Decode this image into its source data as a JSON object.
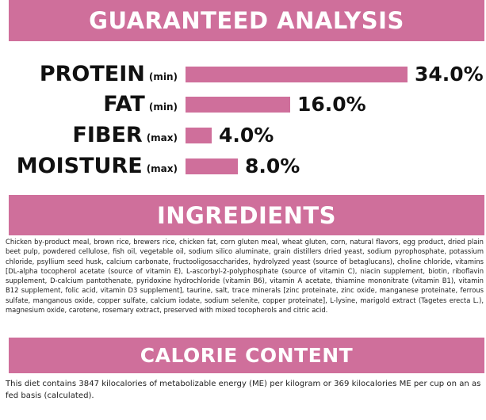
{
  "colors": {
    "accent": "#cf6f9b",
    "text": "#111111",
    "banner_text": "#ffffff"
  },
  "guaranteed_analysis": {
    "title": "GUARANTEED ANALYSIS",
    "rows": [
      {
        "label": "PROTEIN",
        "qualifier": "(min)",
        "value_text": "34.0%",
        "value": 34.0
      },
      {
        "label": "FAT",
        "qualifier": "(min)",
        "value_text": "16.0%",
        "value": 16.0
      },
      {
        "label": "FIBER",
        "qualifier": "(max)",
        "value_text": "4.0%",
        "value": 4.0
      },
      {
        "label": "MOISTURE",
        "qualifier": "(max)",
        "value_text": "8.0%",
        "value": 8.0
      }
    ]
  },
  "ingredients": {
    "title": "INGREDIENTS",
    "text": "Chicken by-product meal, brown rice, brewers rice, chicken fat, corn gluten meal, wheat gluten, corn, natural flavors, egg product, dried plain beet pulp, powdered cellulose, fish oil, vegetable oil, sodium silico aluminate, grain distillers dried yeast, sodium pyrophosphate, potassium chloride, psyllium seed husk, calcium carbonate, fructooligosaccharides, hydrolyzed yeast (source of betaglucans), choline chloride, vitamins [DL-alpha tocopherol acetate (source of vitamin E), L-ascorbyl-2-polyphosphate (source of vitamin C), niacin supplement, biotin, riboflavin supplement, D-calcium pantothenate, pyridoxine hydrochloride (vitamin B6), vitamin A acetate, thiamine mononitrate (vitamin B1), vitamin B12 supplement, folic acid, vitamin D3 supplement], taurine, salt, trace minerals [zinc proteinate, zinc oxide, manganese proteinate, ferrous sulfate, manganous oxide, copper sulfate, calcium iodate, sodium selenite, copper proteinate], L-lysine, marigold extract (Tagetes erecta L.), magnesium oxide, carotene, rosemary extract, preserved with mixed tocopherols and citric acid."
  },
  "calorie_content": {
    "title": "CALORIE CONTENT",
    "text": "This diet contains 3847 kilocalories of metabolizable energy (ME) per kilogram or 369 kilocalories ME per cup on an as fed basis (calculated)."
  }
}
